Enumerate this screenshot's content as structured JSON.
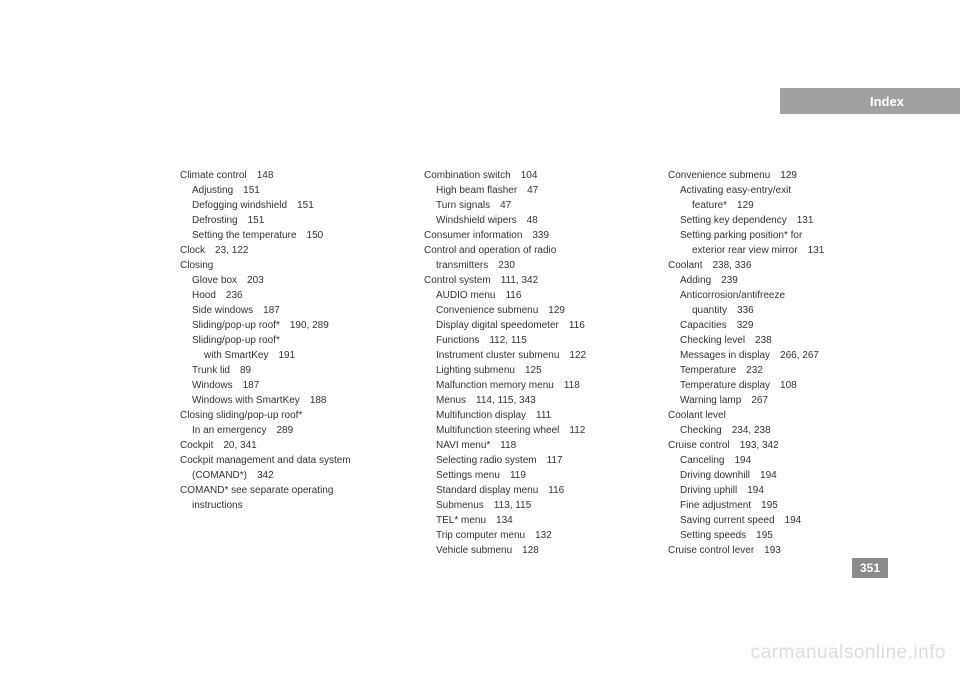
{
  "header": {
    "title": "Index"
  },
  "pageNumber": "351",
  "watermark": "carmanualsonline.info",
  "columns": [
    [
      {
        "i": 0,
        "t": "Climate control",
        "p": "148"
      },
      {
        "i": 1,
        "t": "Adjusting",
        "p": "151"
      },
      {
        "i": 1,
        "t": "Defogging windshield",
        "p": "151"
      },
      {
        "i": 1,
        "t": "Defrosting",
        "p": "151"
      },
      {
        "i": 1,
        "t": "Setting the temperature",
        "p": "150"
      },
      {
        "i": 0,
        "t": "Clock",
        "p": "23, 122"
      },
      {
        "i": 0,
        "t": "Closing",
        "p": ""
      },
      {
        "i": 1,
        "t": "Glove box",
        "p": "203"
      },
      {
        "i": 1,
        "t": "Hood",
        "p": "236"
      },
      {
        "i": 1,
        "t": "Side windows",
        "p": "187"
      },
      {
        "i": 1,
        "t": "Sliding/pop-up roof*",
        "p": "190, 289"
      },
      {
        "i": 1,
        "t": "Sliding/pop-up roof*",
        "p": ""
      },
      {
        "i": 2,
        "t": "with SmartKey",
        "p": "191"
      },
      {
        "i": 1,
        "t": "Trunk lid",
        "p": "89"
      },
      {
        "i": 1,
        "t": "Windows",
        "p": "187"
      },
      {
        "i": 1,
        "t": "Windows with SmartKey",
        "p": "188"
      },
      {
        "i": 0,
        "t": "Closing sliding/pop-up roof*",
        "p": ""
      },
      {
        "i": 1,
        "t": "In an emergency",
        "p": "289"
      },
      {
        "i": 0,
        "t": "Cockpit",
        "p": "20, 341"
      },
      {
        "i": 0,
        "t": "Cockpit management and data system",
        "p": ""
      },
      {
        "i": 1,
        "t": "(COMAND*)",
        "p": "342"
      },
      {
        "i": 0,
        "t": "COMAND* see separate operating",
        "p": ""
      },
      {
        "i": 1,
        "t": "instructions",
        "p": ""
      }
    ],
    [
      {
        "i": 0,
        "t": "Combination switch",
        "p": "104"
      },
      {
        "i": 1,
        "t": "High beam flasher",
        "p": "47"
      },
      {
        "i": 1,
        "t": "Turn signals",
        "p": "47"
      },
      {
        "i": 1,
        "t": "Windshield wipers",
        "p": "48"
      },
      {
        "i": 0,
        "t": "Consumer information",
        "p": "339"
      },
      {
        "i": 0,
        "t": "Control and operation of radio",
        "p": ""
      },
      {
        "i": 1,
        "t": "transmitters",
        "p": "230"
      },
      {
        "i": 0,
        "t": "Control system",
        "p": "111, 342"
      },
      {
        "i": 1,
        "t": "AUDIO menu",
        "p": "116"
      },
      {
        "i": 1,
        "t": "Convenience submenu",
        "p": "129"
      },
      {
        "i": 1,
        "t": "Display digital speedometer",
        "p": "116"
      },
      {
        "i": 1,
        "t": "Functions",
        "p": "112, 115"
      },
      {
        "i": 1,
        "t": "Instrument cluster submenu",
        "p": "122"
      },
      {
        "i": 1,
        "t": "Lighting submenu",
        "p": "125"
      },
      {
        "i": 1,
        "t": "Malfunction memory menu",
        "p": "118"
      },
      {
        "i": 1,
        "t": "Menus",
        "p": "114, 115, 343"
      },
      {
        "i": 1,
        "t": "Multifunction display",
        "p": "111"
      },
      {
        "i": 1,
        "t": "Multifunction steering wheel",
        "p": "112"
      },
      {
        "i": 1,
        "t": "NAVI menu*",
        "p": "118"
      },
      {
        "i": 1,
        "t": "Selecting radio system",
        "p": "117"
      },
      {
        "i": 1,
        "t": "Settings menu",
        "p": "119"
      },
      {
        "i": 1,
        "t": "Standard display menu",
        "p": "116"
      },
      {
        "i": 1,
        "t": "Submenus",
        "p": "113, 115"
      },
      {
        "i": 1,
        "t": "TEL* menu",
        "p": "134"
      },
      {
        "i": 1,
        "t": "Trip computer menu",
        "p": "132"
      },
      {
        "i": 1,
        "t": "Vehicle submenu",
        "p": "128"
      }
    ],
    [
      {
        "i": 0,
        "t": "Convenience submenu",
        "p": "129"
      },
      {
        "i": 1,
        "t": "Activating easy-entry/exit",
        "p": ""
      },
      {
        "i": 2,
        "t": "feature*",
        "p": "129"
      },
      {
        "i": 1,
        "t": "Setting key dependency",
        "p": "131"
      },
      {
        "i": 1,
        "t": "Setting parking position* for",
        "p": ""
      },
      {
        "i": 2,
        "t": "exterior rear view mirror",
        "p": "131"
      },
      {
        "i": 0,
        "t": "Coolant",
        "p": "238, 336"
      },
      {
        "i": 1,
        "t": "Adding",
        "p": "239"
      },
      {
        "i": 1,
        "t": "Anticorrosion/antifreeze",
        "p": ""
      },
      {
        "i": 2,
        "t": "quantity",
        "p": "336"
      },
      {
        "i": 1,
        "t": "Capacities",
        "p": "329"
      },
      {
        "i": 1,
        "t": "Checking level",
        "p": "238"
      },
      {
        "i": 1,
        "t": "Messages in display",
        "p": "266, 267"
      },
      {
        "i": 1,
        "t": "Temperature",
        "p": "232"
      },
      {
        "i": 1,
        "t": "Temperature display",
        "p": "108"
      },
      {
        "i": 1,
        "t": "Warning lamp",
        "p": "267"
      },
      {
        "i": 0,
        "t": "Coolant level",
        "p": ""
      },
      {
        "i": 1,
        "t": "Checking",
        "p": "234, 238"
      },
      {
        "i": 0,
        "t": "Cruise control",
        "p": "193, 342"
      },
      {
        "i": 1,
        "t": "Canceling",
        "p": "194"
      },
      {
        "i": 1,
        "t": "Driving downhill",
        "p": "194"
      },
      {
        "i": 1,
        "t": "Driving uphill",
        "p": "194"
      },
      {
        "i": 1,
        "t": "Fine adjustment",
        "p": "195"
      },
      {
        "i": 1,
        "t": "Saving current speed",
        "p": "194"
      },
      {
        "i": 1,
        "t": "Setting speeds",
        "p": "195"
      },
      {
        "i": 0,
        "t": "Cruise control lever",
        "p": "193"
      }
    ]
  ]
}
